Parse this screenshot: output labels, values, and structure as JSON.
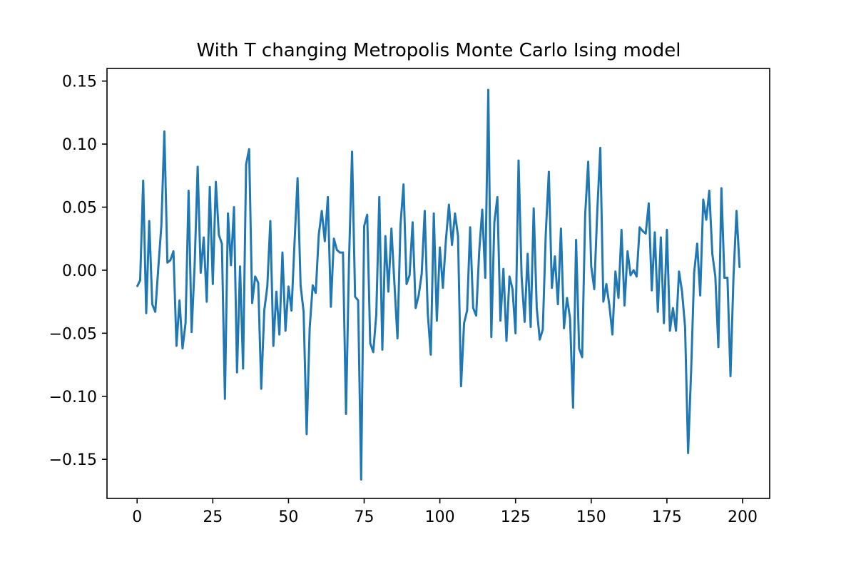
{
  "chart_data": {
    "type": "line",
    "title": "With T changing Metropolis Monte Carlo Ising model",
    "xlabel": "",
    "ylabel": "",
    "xlim": [
      -9.95,
      208.95
    ],
    "ylim": [
      -0.181,
      0.16
    ],
    "x_ticks": [
      0,
      25,
      50,
      75,
      100,
      125,
      150,
      175,
      200
    ],
    "x_tick_labels": [
      "0",
      "25",
      "50",
      "75",
      "100",
      "125",
      "150",
      "175",
      "200"
    ],
    "y_ticks": [
      -0.15,
      -0.1,
      -0.05,
      0.0,
      0.05,
      0.1,
      0.15
    ],
    "y_tick_labels": [
      "−0.15",
      "−0.10",
      "−0.05",
      "0.00",
      "0.05",
      "0.10",
      "0.15"
    ],
    "grid": false,
    "legend": "none",
    "series_color": "#1f77b4",
    "series": [
      {
        "values": [
          -0.013,
          -0.008,
          0.071,
          -0.034,
          0.039,
          -0.027,
          -0.033,
          0.002,
          0.035,
          0.11,
          0.006,
          0.008,
          0.015,
          -0.06,
          -0.024,
          -0.062,
          -0.042,
          0.063,
          -0.049,
          0.004,
          0.082,
          -0.002,
          0.026,
          -0.025,
          0.066,
          -0.011,
          0.07,
          0.028,
          0.021,
          -0.102,
          0.045,
          0.004,
          0.05,
          -0.081,
          0.003,
          -0.078,
          0.084,
          0.096,
          -0.026,
          -0.005,
          -0.01,
          -0.094,
          -0.032,
          -0.013,
          0.039,
          -0.06,
          -0.017,
          -0.051,
          0.014,
          -0.048,
          -0.013,
          -0.032,
          0.022,
          0.073,
          -0.012,
          -0.033,
          -0.13,
          -0.046,
          -0.012,
          -0.018,
          0.028,
          0.047,
          0.023,
          0.058,
          -0.029,
          0.025,
          0.016,
          0.014,
          0.014,
          -0.114,
          0.008,
          0.094,
          -0.021,
          -0.024,
          -0.166,
          0.035,
          0.044,
          -0.058,
          -0.065,
          -0.035,
          0.058,
          -0.063,
          0.027,
          -0.017,
          0.033,
          -0.011,
          -0.054,
          0.036,
          0.068,
          -0.011,
          -0.004,
          0.038,
          -0.03,
          -0.02,
          -0.003,
          0.047,
          -0.034,
          -0.067,
          0.045,
          -0.04,
          0.018,
          -0.014,
          0.024,
          0.052,
          0.02,
          0.045,
          0.027,
          -0.092,
          -0.042,
          -0.032,
          0.034,
          -0.03,
          -0.036,
          0.015,
          0.048,
          -0.006,
          0.143,
          -0.053,
          0.038,
          0.058,
          -0.04,
          0.001,
          -0.056,
          -0.005,
          -0.015,
          -0.05,
          0.087,
          -0.005,
          -0.041,
          0.013,
          -0.045,
          0.049,
          -0.03,
          -0.055,
          -0.047,
          0.03,
          0.078,
          -0.014,
          0.011,
          -0.027,
          0.033,
          -0.046,
          -0.022,
          -0.038,
          -0.109,
          0.024,
          -0.062,
          -0.069,
          0.044,
          0.086,
          0.003,
          -0.015,
          0.047,
          0.097,
          -0.025,
          -0.011,
          -0.028,
          -0.051,
          -0.001,
          -0.022,
          0.032,
          -0.028,
          0.015,
          -0.004,
          0.0,
          -0.005,
          0.034,
          0.031,
          0.029,
          0.053,
          -0.016,
          0.03,
          -0.033,
          0.026,
          -0.042,
          0.032,
          -0.048,
          -0.03,
          -0.048,
          -0.001,
          -0.017,
          -0.045,
          -0.145,
          -0.08,
          -0.002,
          0.021,
          -0.02,
          0.056,
          0.04,
          0.063,
          0.013,
          -0.005,
          -0.061,
          0.065,
          -0.006,
          -0.006,
          -0.084,
          -0.005,
          0.047,
          0.002
        ]
      }
    ]
  }
}
